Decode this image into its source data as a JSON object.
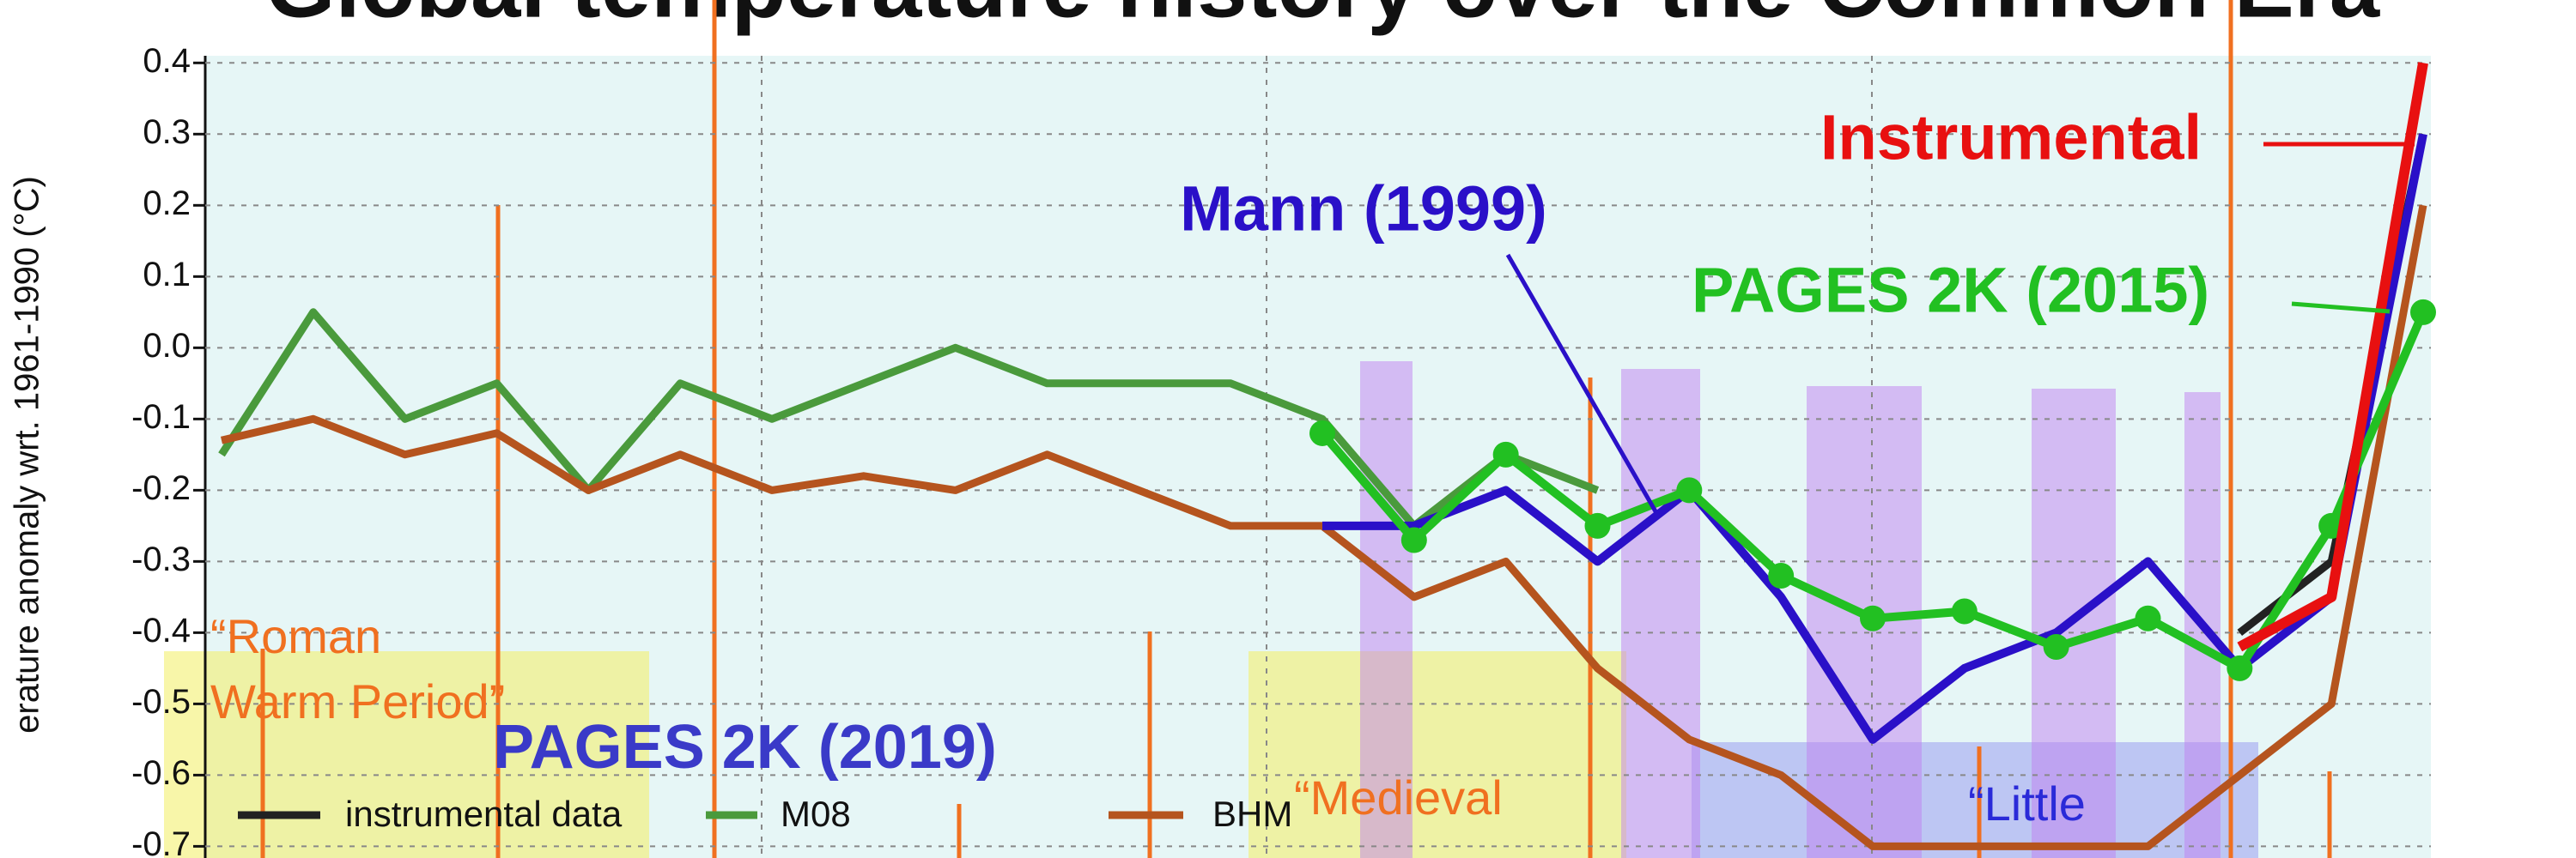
{
  "chart_data": {
    "type": "line",
    "title": "Global temperature history over the Common Era",
    "y_label": "erature anomaly wrt. 1961-1990 (°C)",
    "categories": [
      null,
      null,
      null,
      null,
      null,
      null,
      null,
      null,
      null,
      null,
      null,
      null,
      null,
      null,
      null,
      null,
      null,
      null,
      null,
      null,
      null,
      null,
      null,
      null,
      null
    ],
    "ylim": [
      -0.72,
      0.41
    ],
    "yticks": [
      0.4,
      0.3,
      0.2,
      0.1,
      {
        "value": 0,
        "label": "0.0"
      },
      -0.1,
      -0.2,
      -0.3,
      -0.4,
      -0.5,
      -0.6,
      -0.7
    ],
    "grid": true,
    "series": [
      {
        "name": "instrumental data",
        "color": "#222222",
        "values": [
          null,
          null,
          null,
          null,
          null,
          null,
          null,
          null,
          null,
          null,
          null,
          null,
          null,
          null,
          null,
          null,
          null,
          null,
          null,
          null,
          null,
          null,
          -0.4,
          -0.3,
          0.3
        ]
      },
      {
        "name": "M08",
        "color": "#4a9a3c",
        "values": [
          -0.15,
          0.05,
          -0.1,
          -0.05,
          -0.2,
          -0.05,
          -0.1,
          -0.05,
          0,
          -0.05,
          -0.05,
          -0.05,
          -0.1,
          -0.25,
          -0.15,
          -0.2,
          null,
          null,
          null,
          null,
          null,
          null,
          null,
          null,
          null
        ]
      },
      {
        "name": "BHM",
        "color": "#b5541e",
        "values": [
          -0.13,
          -0.1,
          -0.15,
          -0.12,
          -0.2,
          -0.15,
          -0.2,
          -0.18,
          -0.2,
          -0.15,
          -0.2,
          -0.25,
          -0.25,
          -0.35,
          -0.3,
          -0.45,
          -0.55,
          -0.6,
          -0.7,
          -0.7,
          -0.7,
          -0.7,
          -0.6,
          -0.5,
          0.2
        ]
      }
    ],
    "labeled_series": [
      {
        "name": "Mann (1999)",
        "color": "#2a10c8",
        "values": [
          null,
          null,
          null,
          null,
          null,
          null,
          null,
          null,
          null,
          null,
          null,
          null,
          -0.25,
          -0.25,
          -0.2,
          -0.3,
          -0.2,
          -0.35,
          -0.55,
          -0.45,
          -0.4,
          -0.3,
          -0.45,
          -0.35,
          0.3
        ]
      },
      {
        "name": "PAGES 2K (2015)",
        "color": "#22c022",
        "values": [
          null,
          null,
          null,
          null,
          null,
          null,
          null,
          null,
          null,
          null,
          null,
          null,
          -0.12,
          -0.27,
          -0.15,
          -0.25,
          -0.2,
          -0.32,
          -0.38,
          -0.37,
          -0.42,
          -0.38,
          -0.45,
          -0.25,
          0.05
        ]
      },
      {
        "name": "Instrumental",
        "color": "#e81010",
        "values": [
          null,
          null,
          null,
          null,
          null,
          null,
          null,
          null,
          null,
          null,
          null,
          null,
          null,
          null,
          null,
          null,
          null,
          null,
          null,
          null,
          null,
          null,
          -0.42,
          -0.35,
          0.4
        ]
      }
    ],
    "annotations": [
      "PAGES 2K (2019)",
      "“Roman",
      "Warm Period”",
      "“Medieval",
      "“Little"
    ]
  }
}
